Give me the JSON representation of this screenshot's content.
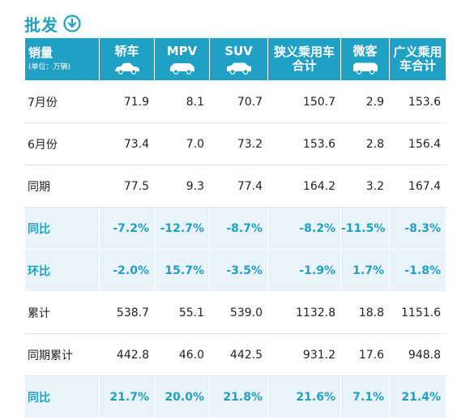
{
  "title": "批发",
  "icons": {
    "title_icon": "download-circle-icon",
    "vehicle_icon": "car-icon"
  },
  "colors": {
    "accent": "#1fa0c4",
    "pct_row_bg": "#e9f4fa"
  },
  "header": {
    "corner_label": "销量",
    "corner_unit": "(单位：万辆)",
    "columns": [
      "轿车",
      "MPV",
      "SUV",
      "狭义乘用车合计",
      "微客",
      "广义乘用车合计"
    ]
  },
  "rows": [
    {
      "label": "7月份",
      "kind": "plain",
      "values": [
        "71.9",
        "8.1",
        "70.7",
        "150.7",
        "2.9",
        "153.6"
      ]
    },
    {
      "label": "6月份",
      "kind": "plain",
      "values": [
        "73.4",
        "7.0",
        "73.2",
        "153.6",
        "2.8",
        "156.4"
      ]
    },
    {
      "label": "同期",
      "kind": "plain",
      "values": [
        "77.5",
        "9.3",
        "77.4",
        "164.2",
        "3.2",
        "167.4"
      ]
    },
    {
      "label": "同比",
      "kind": "pct",
      "values": [
        "-7.2%",
        "-12.7%",
        "-8.7%",
        "-8.2%",
        "-11.5%",
        "-8.3%"
      ]
    },
    {
      "label": "环比",
      "kind": "pct",
      "values": [
        "-2.0%",
        "15.7%",
        "-3.5%",
        "-1.9%",
        "1.7%",
        "-1.8%"
      ]
    },
    {
      "label": "累计",
      "kind": "plain",
      "values": [
        "538.7",
        "55.1",
        "539.0",
        "1132.8",
        "18.8",
        "1151.6"
      ]
    },
    {
      "label": "同期累计",
      "kind": "plain",
      "values": [
        "442.8",
        "46.0",
        "442.5",
        "931.2",
        "17.6",
        "948.8"
      ]
    },
    {
      "label": "同比",
      "kind": "pct",
      "values": [
        "21.7%",
        "20.0%",
        "21.8%",
        "21.6%",
        "7.1%",
        "21.4%"
      ]
    }
  ]
}
